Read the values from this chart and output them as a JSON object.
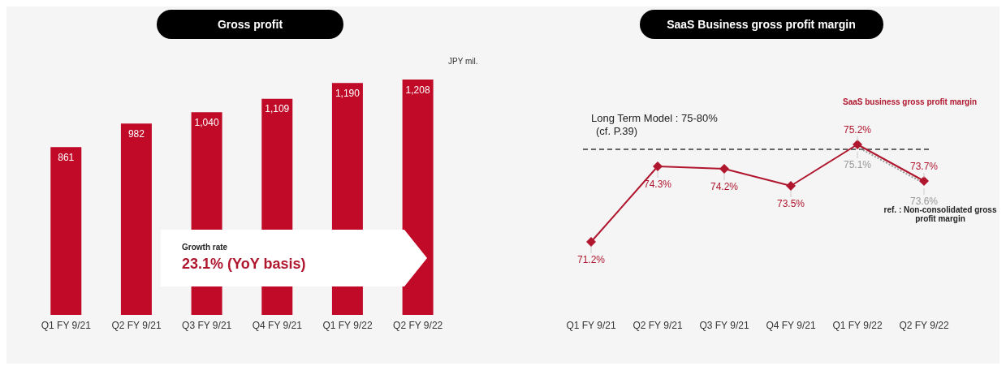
{
  "chart_data": [
    {
      "type": "bar",
      "title": "Gross profit",
      "ylabel": "JPY mil.",
      "categories": [
        "Q1 FY 9/21",
        "Q2 FY 9/21",
        "Q3 FY 9/21",
        "Q4 FY 9/21",
        "Q1 FY 9/22",
        "Q2 FY 9/22"
      ],
      "values": [
        861,
        982,
        1040,
        1109,
        1190,
        1208
      ],
      "color": "#c00a27",
      "data_labels": true,
      "value_labels": [
        "861",
        "982",
        "1,040",
        "1,109",
        "1,190",
        "1,208"
      ],
      "annotations": [
        "Growth rate",
        "23.1% (YoY basis)"
      ]
    },
    {
      "type": "line",
      "title": "SaaS Business gross profit margin",
      "categories": [
        "Q1 FY 9/21",
        "Q2 FY 9/21",
        "Q3 FY 9/21",
        "Q4 FY 9/21",
        "Q1 FY 9/22",
        "Q2 FY 9/22"
      ],
      "series": [
        {
          "name": "SaaS business gross profit margin",
          "color": "#b0172e",
          "values": [
            71.2,
            74.3,
            74.2,
            73.5,
            75.2,
            73.7
          ],
          "value_labels": [
            "71.2%",
            "74.3%",
            "74.2%",
            "73.5%",
            "75.2%",
            "73.7%"
          ],
          "marker": "diamond",
          "line_style": "solid"
        },
        {
          "name": "ref. : Non-consolidated gross profit margin",
          "color": "#999999",
          "values": [
            null,
            null,
            null,
            null,
            75.1,
            73.6
          ],
          "value_labels": [
            null,
            null,
            null,
            null,
            "75.1%",
            "73.6%"
          ],
          "marker": "none",
          "line_style": "dotted"
        }
      ],
      "data_labels": true,
      "ref_lines": [
        {
          "axis": "y",
          "value": 75,
          "label": "Long Term Model : 75-80%\n(cf. P.39)",
          "color": "#666666",
          "line_style": "dashed"
        }
      ]
    }
  ]
}
